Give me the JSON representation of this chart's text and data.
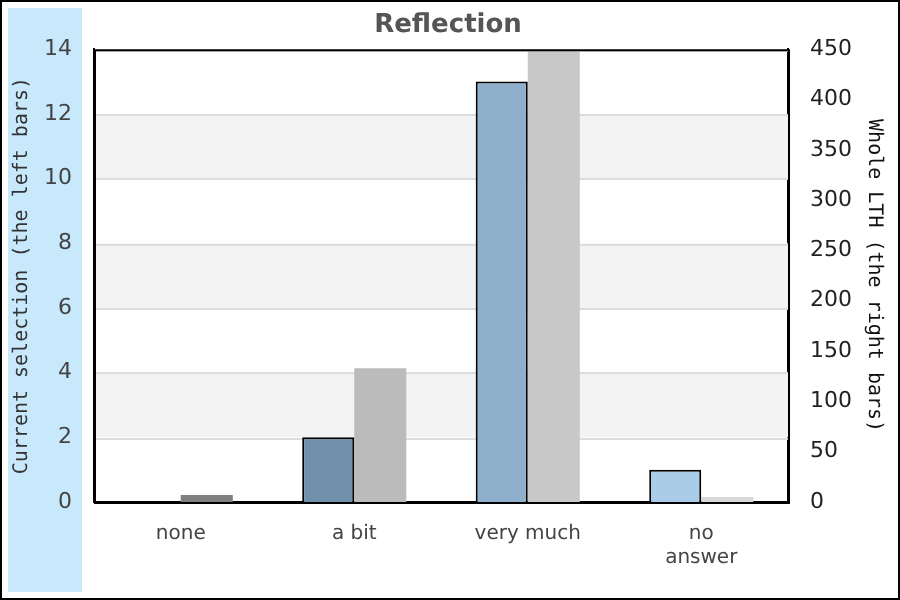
{
  "chart_data": {
    "type": "bar",
    "title": "Reflection",
    "ylabel": "Current selection (the left bars)",
    "y2label": "Whole LTH (the right bars)",
    "categories": [
      "none",
      "a bit",
      "very much",
      "no\nanswer"
    ],
    "series": [
      {
        "values": [
          0,
          2,
          13,
          1
        ],
        "colors": [
          "#7090ac",
          "#7090ac",
          "#8eb0cc",
          "#aacce8"
        ]
      },
      {
        "values": [
          7,
          133,
          450,
          5
        ],
        "axis": "y2",
        "colors": [
          "#808080",
          "#bbbbbb",
          "#c8c8c8",
          "#d8d8d8"
        ]
      }
    ],
    "ylim": [
      0,
      14
    ],
    "yticks": [
      0,
      2,
      4,
      6,
      8,
      10,
      12,
      14
    ],
    "y2lim": [
      0,
      450
    ],
    "y2ticks": [
      0,
      50,
      100,
      150,
      200,
      250,
      300,
      350,
      400,
      450
    ],
    "grid": "y"
  }
}
